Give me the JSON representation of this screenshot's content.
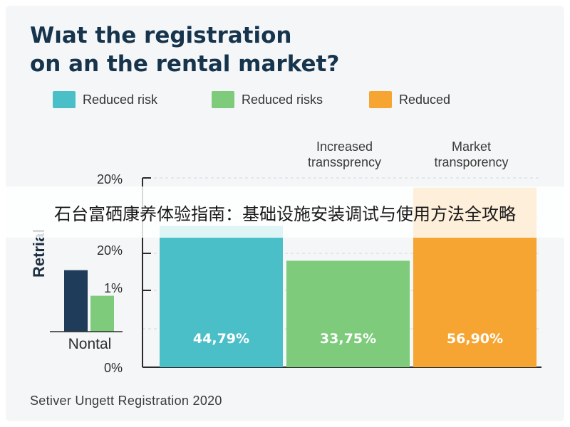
{
  "title_line1": "Wıat the registration",
  "title_line2": "on an the rental market?",
  "legend": [
    {
      "label": "Reduced risk",
      "color": "#4bbfc8"
    },
    {
      "label": "Reduced risks",
      "color": "#7dcb7b"
    },
    {
      "label": "Reduced",
      "color": "#f6a532"
    }
  ],
  "footer": "Setiver Ungett Registration 2020",
  "banner": "石台富硒康养体验指南：基础设施安装调试与使用方法全攻略",
  "chart_data": {
    "type": "bar",
    "y_tick_labels": [
      "20%",
      "20%",
      "1%",
      "0%"
    ],
    "ylabel": "Retrial",
    "series": [
      {
        "name": "Reduced risk",
        "category_label": "",
        "value_label": "44,79%",
        "value": 44.79,
        "color": "#4bbfc8"
      },
      {
        "name": "Reduced risks",
        "category_label": "Increased transsprency",
        "value_label": "33,75%",
        "value": 33.75,
        "color": "#7dcb7b"
      },
      {
        "name": "Reduced",
        "category_label": "Market transporency",
        "value_label": "56,90%",
        "value": 56.9,
        "color": "#f6a532"
      }
    ],
    "inset": {
      "label": "Nontal",
      "bars": [
        {
          "value": 0.72,
          "color": "#1f3c5a"
        },
        {
          "value": 0.42,
          "color": "#7dcb7b"
        }
      ]
    },
    "grid": true
  }
}
